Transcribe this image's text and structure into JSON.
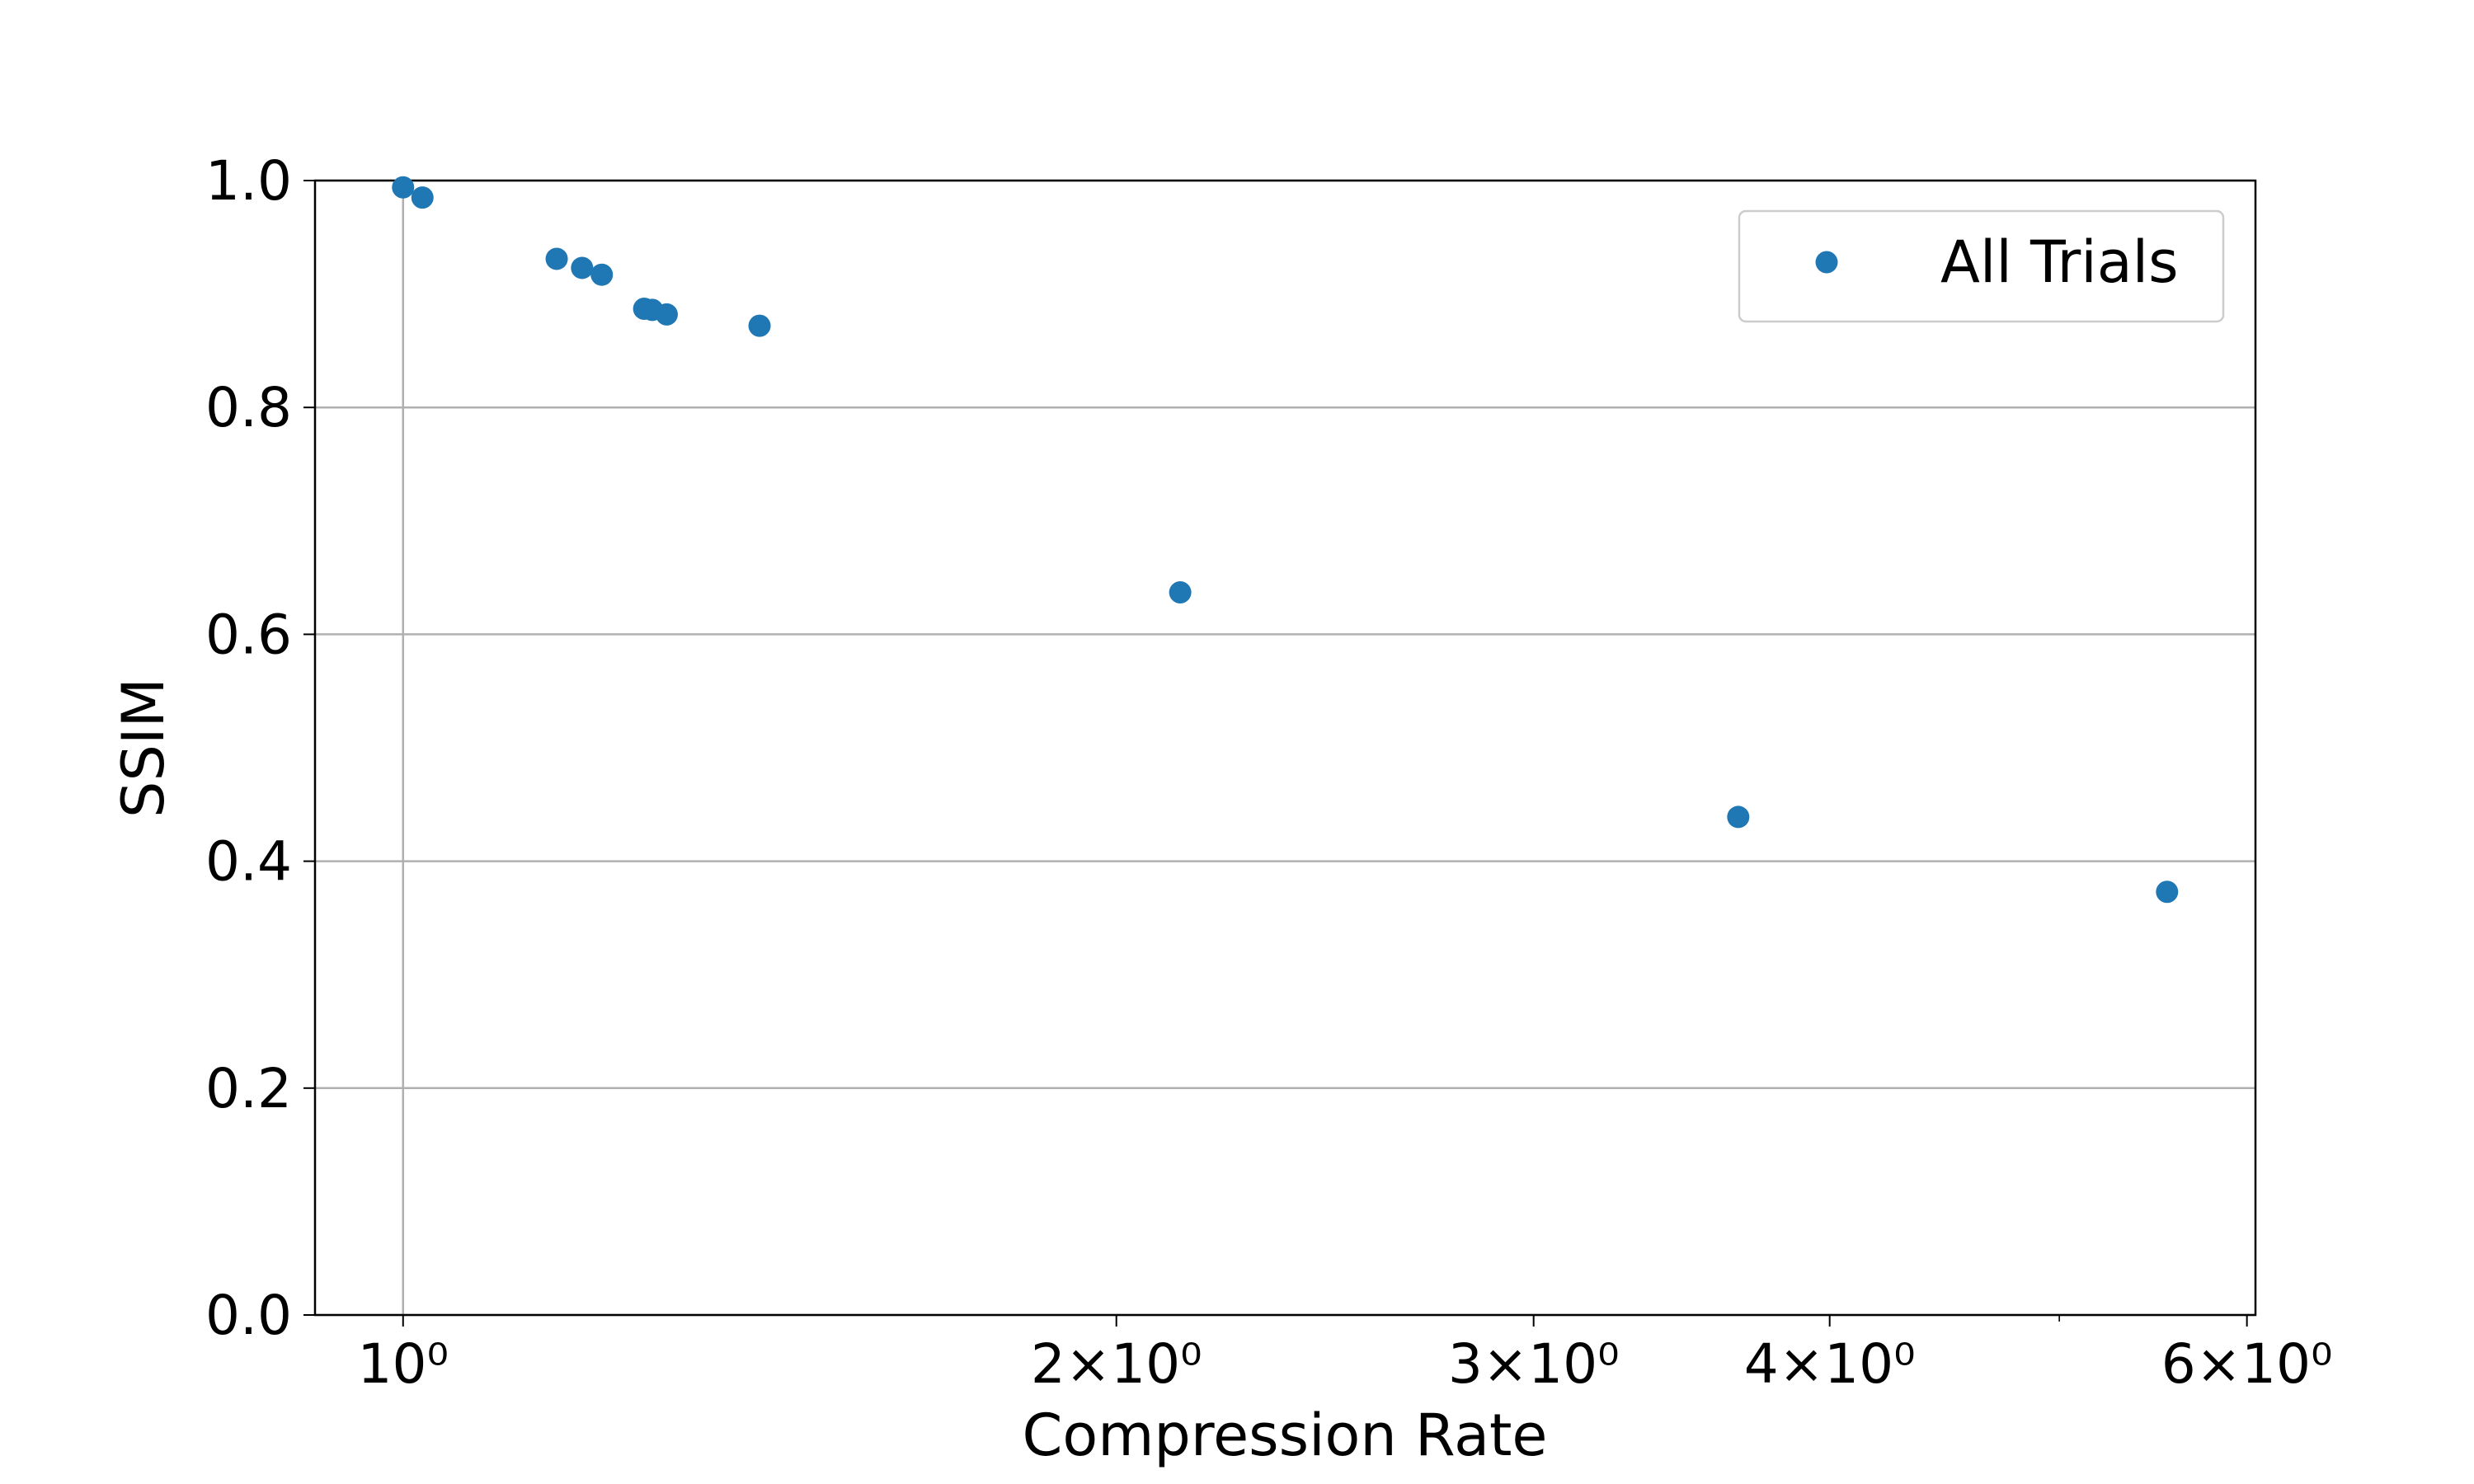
{
  "chart_data": {
    "type": "scatter",
    "x_label": "Compression Rate",
    "y_label": "SSIM",
    "xscale": "log",
    "xlim": [
      0.918,
      6.05
    ],
    "ylim": [
      0,
      1
    ],
    "xticks": [
      {
        "value": 1,
        "label": "10⁰"
      },
      {
        "value": 2,
        "label": "2×10⁰"
      },
      {
        "value": 3,
        "label": "3×10⁰"
      },
      {
        "value": 4,
        "label": "4×10⁰"
      },
      {
        "value": 6,
        "label": "6×10⁰"
      }
    ],
    "x_minor_ticks": [
      5
    ],
    "yticks": [
      {
        "value": 0,
        "label": "0.0"
      },
      {
        "value": 0.2,
        "label": "0.2"
      },
      {
        "value": 0.4,
        "label": "0.4"
      },
      {
        "value": 0.6,
        "label": "0.6"
      },
      {
        "value": 0.8,
        "label": "0.8"
      },
      {
        "value": 1,
        "label": "1.0"
      }
    ],
    "grid": true,
    "legend": "upper right",
    "series": [
      {
        "name": "All Trials",
        "color": "#1f77b4",
        "x": [
          1.0,
          1.019,
          1.161,
          1.19,
          1.213,
          1.264,
          1.274,
          1.292,
          1.414,
          2.128,
          3.66,
          5.552
        ],
        "values": [
          0.994,
          0.985,
          0.931,
          0.923,
          0.917,
          0.887,
          0.886,
          0.882,
          0.872,
          0.637,
          0.439,
          0.373
        ]
      }
    ]
  }
}
